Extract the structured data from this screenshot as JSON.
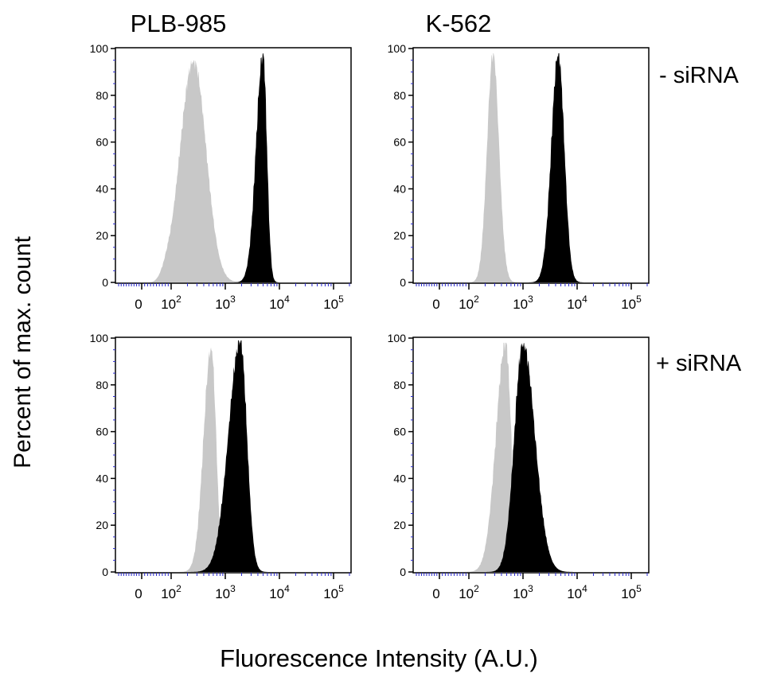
{
  "figure": {
    "column_titles": [
      "PLB-985",
      "K-562"
    ],
    "row_labels": [
      "- siRNA",
      "+ siRNA"
    ],
    "ylabel": "Percent of max. count",
    "xlabel": "Fluorescence Intensity (A.U.)"
  },
  "colors": {
    "control": "#c8c8c8",
    "stained": "#000000",
    "axis": "#000000",
    "minor_ticks": "#2a2ad0"
  },
  "chart_data": [
    {
      "type": "area",
      "panel": "PLB-985 - siRNA",
      "x_scale": "logicle",
      "xlim": [
        -45,
        300000
      ],
      "ylim": [
        0,
        100
      ],
      "x_tick_labels": [
        "0",
        "10^2",
        "10^3",
        "10^4",
        "10^5"
      ],
      "x_ticks": [
        0,
        100,
        1000,
        10000,
        100000
      ],
      "y_ticks": [
        0,
        20,
        40,
        60,
        80,
        100
      ],
      "y_tick_labels": [
        "0",
        "20",
        "40",
        "60",
        "80",
        "100"
      ],
      "series": [
        {
          "role": "control",
          "peak_x": 260,
          "peak_y": 95,
          "width_left": 0.25,
          "width_right": 0.23
        },
        {
          "role": "stained",
          "peak_x": 5000,
          "peak_y": 98,
          "width_left": 0.13,
          "width_right": 0.07
        }
      ]
    },
    {
      "type": "area",
      "panel": "K-562 - siRNA",
      "x_scale": "logicle",
      "xlim": [
        -45,
        300000
      ],
      "ylim": [
        0,
        100
      ],
      "x_tick_labels": [
        "0",
        "10^2",
        "10^3",
        "10^4",
        "10^5"
      ],
      "x_ticks": [
        0,
        100,
        1000,
        10000,
        100000
      ],
      "y_ticks": [
        0,
        20,
        40,
        60,
        80,
        100
      ],
      "y_tick_labels": [
        "0",
        "20",
        "40",
        "60",
        "80",
        "100"
      ],
      "series": [
        {
          "role": "control",
          "peak_x": 280,
          "peak_y": 98,
          "width_left": 0.11,
          "width_right": 0.11
        },
        {
          "role": "stained",
          "peak_x": 4500,
          "peak_y": 98,
          "width_left": 0.13,
          "width_right": 0.11
        }
      ]
    },
    {
      "type": "area",
      "panel": "PLB-985 + siRNA",
      "x_scale": "logicle",
      "xlim": [
        -45,
        300000
      ],
      "ylim": [
        0,
        100
      ],
      "x_tick_labels": [
        "0",
        "10^2",
        "10^3",
        "10^4",
        "10^5"
      ],
      "x_ticks": [
        0,
        100,
        1000,
        10000,
        100000
      ],
      "y_ticks": [
        0,
        20,
        40,
        60,
        80,
        100
      ],
      "y_tick_labels": [
        "0",
        "20",
        "40",
        "60",
        "80",
        "100"
      ],
      "series": [
        {
          "role": "control",
          "peak_x": 550,
          "peak_y": 96,
          "width_left": 0.14,
          "width_right": 0.09
        },
        {
          "role": "stained",
          "peak_x": 1900,
          "peak_y": 99,
          "width_left": 0.22,
          "width_right": 0.12
        }
      ]
    },
    {
      "type": "area",
      "panel": "K-562 + siRNA",
      "x_scale": "logicle",
      "xlim": [
        -45,
        300000
      ],
      "ylim": [
        0,
        100
      ],
      "x_tick_labels": [
        "0",
        "10^2",
        "10^3",
        "10^4",
        "10^5"
      ],
      "x_ticks": [
        0,
        100,
        1000,
        10000,
        100000
      ],
      "y_ticks": [
        0,
        20,
        40,
        60,
        80,
        100
      ],
      "y_tick_labels": [
        "0",
        "20",
        "40",
        "60",
        "80",
        "100"
      ],
      "series": [
        {
          "role": "control",
          "peak_x": 480,
          "peak_y": 98,
          "width_left": 0.18,
          "width_right": 0.1
        },
        {
          "role": "stained",
          "peak_x": 1000,
          "peak_y": 98,
          "width_left": 0.16,
          "width_right": 0.22
        }
      ]
    }
  ]
}
